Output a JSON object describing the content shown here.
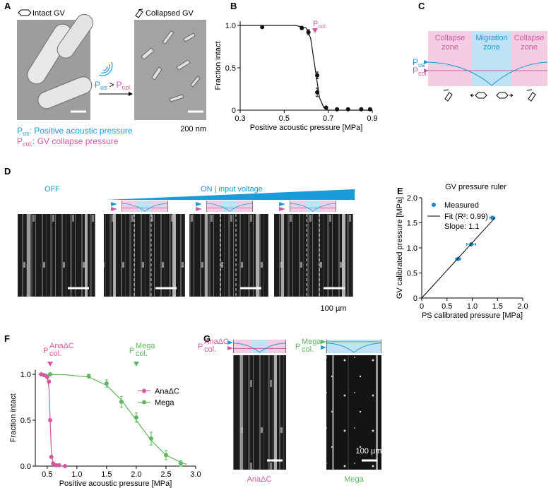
{
  "panel_labels": [
    "A",
    "B",
    "C",
    "D",
    "E",
    "F",
    "G"
  ],
  "panel_a": {
    "intact": "Intact GV",
    "collapsed": "Collapsed GV",
    "arrow": {
      "p1": "P",
      "s1": "us",
      "op": ">",
      "p2": "P",
      "s2": "col."
    },
    "scale": "200 nm",
    "legend": [
      {
        "p": "P",
        "sub": "us",
        "text": ": Positive acoustic pressure"
      },
      {
        "p": "P",
        "sub": "col.",
        "text": ": GV collapse pressure"
      }
    ]
  },
  "panel_c": {
    "zones": [
      [
        "Collapse",
        "zone"
      ],
      [
        "Migration",
        "zone"
      ],
      [
        "Collapse",
        "zone"
      ]
    ],
    "p_us": {
      "p": "P",
      "sub": "us"
    },
    "p_col": {
      "p": "P",
      "sub": "col."
    }
  },
  "panel_d": {
    "off": "OFF",
    "on": "ON | input voltage",
    "scale": "100 µm"
  },
  "panel_g": {
    "p_ana": {
      "p": "P",
      "sub": "col.",
      "sup": "AnaΔC"
    },
    "p_mega": {
      "p": "P",
      "sub": "col.",
      "sup": "Mega"
    },
    "scale": "100 µm",
    "captions": [
      "AnaΔC",
      "Mega"
    ]
  },
  "chart_data": [
    {
      "type": "scatter",
      "xlabel": "Positive acoustic pressure [MPa]",
      "ylabel": "Fraction intact",
      "color": "#111111",
      "x": [
        0.4,
        0.58,
        0.61,
        0.65,
        0.65,
        0.69,
        0.74,
        0.79,
        0.85,
        0.89
      ],
      "values": [
        0.98,
        0.97,
        0.92,
        0.41,
        0.21,
        0.03,
        0.01,
        0.01,
        0.01,
        0.01
      ],
      "errors": [
        0.01,
        0.02,
        0.03,
        0.04,
        0.05,
        0.01,
        0.01,
        0.01,
        0.01,
        0.01
      ],
      "fits": [
        {
          "x": [
            0.3,
            0.55,
            0.6,
            0.62,
            0.64,
            0.66,
            0.68,
            0.7,
            0.9
          ],
          "values": [
            1,
            1,
            0.97,
            0.85,
            0.5,
            0.15,
            0.03,
            0,
            0
          ]
        }
      ],
      "markers": [
        {
          "x": 0.64,
          "p": "P",
          "sub": "col.",
          "color": "#d4589f"
        }
      ],
      "xlim": [
        0.3,
        0.9
      ],
      "ylim": [
        0,
        1.05
      ],
      "xticks": [
        0.3,
        0.5,
        0.7,
        0.9
      ],
      "yticks": [
        0,
        0.5,
        {
          "value": 1,
          "label": "1.0"
        }
      ]
    },
    {
      "type": "scatter",
      "title": "GV pressure ruler",
      "xlabel": "PS calibrated pressure [MPa]",
      "ylabel": "GV calibrated pressure [MPa]",
      "legend": "upper left",
      "series": [
        {
          "name": "Measured",
          "color": "#1a87c8",
          "x": [
            0.72,
            0.98,
            1.4
          ],
          "values": [
            0.78,
            1.07,
            1.6
          ],
          "x_errors": [
            0.05,
            0.09,
            0.05
          ]
        },
        {
          "name": "Fit (R²: 0.99)",
          "color": "#000000",
          "mode": "line",
          "x": [
            0,
            1.45
          ],
          "values": [
            0,
            1.6
          ]
        }
      ],
      "annotation": "Slope: 1.1",
      "xlim": [
        0,
        2
      ],
      "ylim": [
        0,
        2
      ],
      "xticks": [
        0,
        0.5,
        {
          "value": 1,
          "label": "1.0"
        },
        1.5,
        {
          "value": 2,
          "label": "2.0"
        }
      ],
      "yticks": [
        0,
        0.5,
        {
          "value": 1,
          "label": "1.0"
        },
        1.5,
        {
          "value": 2,
          "label": "2.0"
        }
      ]
    },
    {
      "type": "scatter",
      "xlabel": "Positive acoustic pressure [MPa]",
      "ylabel": "Fraction intact",
      "legend": "center right",
      "series": [
        {
          "name": "AnaΔC",
          "color": "#d4589f",
          "x": [
            0.4,
            0.45,
            0.5,
            0.53,
            0.55,
            0.57,
            0.6,
            0.65,
            0.7,
            0.8
          ],
          "values": [
            1,
            0.99,
            0.97,
            0.92,
            0.5,
            0.1,
            0.03,
            0.01,
            0.01,
            0
          ]
        },
        {
          "name": "Mega",
          "color": "#5cb85c",
          "x": [
            0.55,
            1.2,
            1.5,
            1.75,
            2.0,
            2.25,
            2.5,
            2.75
          ],
          "values": [
            1,
            0.98,
            0.9,
            0.7,
            0.53,
            0.3,
            0.12,
            0.03
          ],
          "errors": [
            0.01,
            0.02,
            0.04,
            0.06,
            0.05,
            0.07,
            0.05,
            0.03
          ]
        }
      ],
      "fits": [
        {
          "x": [
            0.35,
            0.45,
            0.5,
            0.53,
            0.55,
            0.57,
            0.6,
            0.65,
            0.8
          ],
          "values": [
            1,
            1,
            0.97,
            0.85,
            0.5,
            0.15,
            0.03,
            0.005,
            0
          ]
        },
        {
          "x": [
            0.4,
            0.8,
            1.2,
            1.5,
            1.75,
            2.0,
            2.25,
            2.5,
            2.75,
            2.85
          ],
          "values": [
            1,
            0.995,
            0.97,
            0.88,
            0.72,
            0.5,
            0.28,
            0.12,
            0.04,
            0.02
          ]
        }
      ],
      "markers": [
        {
          "x": 0.55,
          "p": "P",
          "sub": "col.",
          "sup": "AnaΔC",
          "color": "#d4589f"
        },
        {
          "x": 2.0,
          "p": "P",
          "sub": "col.",
          "sup": "Mega",
          "color": "#5cb85c"
        }
      ],
      "xlim": [
        0.3,
        3.0
      ],
      "ylim": [
        0,
        1.05
      ],
      "xticks": [
        0.5,
        {
          "value": 1,
          "label": "1.0"
        },
        1.5,
        {
          "value": 2,
          "label": "2.0"
        },
        2.5,
        {
          "value": 3,
          "label": "3.0"
        }
      ],
      "yticks": [
        {
          "value": 0,
          "label": "0.0"
        },
        0.5,
        {
          "value": 1,
          "label": "1.0"
        }
      ]
    }
  ]
}
